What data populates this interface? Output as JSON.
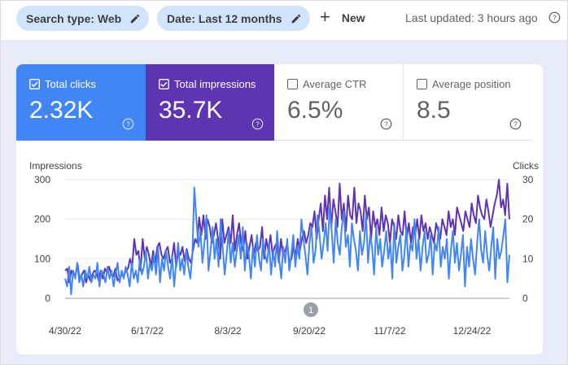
{
  "topbar": {
    "search_type_chip": "Search type: Web",
    "date_chip": "Date: Last 12 months",
    "new_button": "New",
    "last_updated": "Last updated: 3 hours ago"
  },
  "metrics": [
    {
      "label": "Total clicks",
      "value": "2.32K",
      "selected": true,
      "color": "#4285f4"
    },
    {
      "label": "Total impressions",
      "value": "35.7K",
      "selected": true,
      "color": "#5e35b1"
    },
    {
      "label": "Average CTR",
      "value": "6.5%",
      "selected": false
    },
    {
      "label": "Average position",
      "value": "8.5",
      "selected": false
    }
  ],
  "icons": [
    "edit-pencil-icon",
    "plus-icon",
    "help-icon",
    "checkbox-checked-icon",
    "checkbox-empty-icon",
    "annotation-marker-icon"
  ],
  "chart_data": {
    "type": "line",
    "left_axis_label": "Impressions",
    "right_axis_label": "Clicks",
    "y_left_ticks": [
      "300",
      "200",
      "100",
      "0"
    ],
    "y_right_ticks": [
      "30",
      "20",
      "10",
      "0"
    ],
    "ylim_left": [
      0,
      300
    ],
    "ylim_right": [
      0,
      30
    ],
    "x_tick_labels": [
      "4/30/22",
      "6/17/22",
      "8/3/22",
      "9/20/22",
      "11/7/22",
      "12/24/22"
    ],
    "annotation_marker": "1",
    "grid": true,
    "series": [
      {
        "axis": "left",
        "color": "#5e35b1",
        "values": [
          70,
          75,
          40,
          70,
          60,
          60,
          85,
          45,
          60,
          70,
          40,
          60,
          45,
          60,
          70,
          65,
          45,
          70,
          50,
          75,
          65,
          80,
          60,
          55,
          75,
          45,
          50,
          60,
          55,
          70,
          75,
          100,
          80,
          150,
          110,
          120,
          70,
          150,
          100,
          130,
          110,
          80,
          120,
          90,
          130,
          140,
          110,
          100,
          120,
          130,
          90,
          100,
          140,
          80,
          120,
          110,
          130,
          95,
          125,
          100,
          90,
          120,
          150,
          140,
          205,
          160,
          210,
          150,
          200,
          180,
          140,
          160,
          190,
          150,
          100,
          200,
          140,
          160,
          180,
          140,
          210,
          120,
          160,
          190,
          140,
          120,
          170,
          100,
          130,
          160,
          110,
          140,
          120,
          130,
          180,
          100,
          150,
          120,
          160,
          110,
          130,
          140,
          90,
          150,
          110,
          120,
          140,
          90,
          100,
          130,
          110,
          150,
          120,
          150,
          170,
          140,
          160,
          190,
          180,
          220,
          150,
          200,
          240,
          170,
          260,
          200,
          280,
          180,
          250,
          220,
          180,
          290,
          200,
          240,
          170,
          260,
          210,
          200,
          280,
          190,
          240,
          220,
          170,
          260,
          200,
          230,
          150,
          220,
          180,
          200,
          160,
          230,
          170,
          210,
          190,
          140,
          200,
          180,
          150,
          210,
          170,
          160,
          220,
          150,
          190,
          140,
          180,
          160,
          200,
          150,
          210,
          170,
          190,
          150,
          180,
          160,
          140,
          190,
          170,
          150,
          200,
          180,
          160,
          220,
          180,
          200,
          160,
          230,
          210,
          190,
          170,
          220,
          200,
          180,
          240,
          210,
          190,
          260,
          230,
          210,
          200,
          250,
          220,
          180,
          210,
          240,
          260,
          300,
          230,
          250,
          210,
          290,
          200
        ]
      },
      {
        "axis": "right",
        "color": "#4285f4",
        "values": [
          5,
          3,
          8,
          1,
          7,
          5,
          9,
          4,
          6,
          3,
          7,
          5,
          8,
          4,
          6,
          5,
          9,
          3,
          7,
          6,
          4,
          8,
          5,
          7,
          3,
          6,
          9,
          4,
          7,
          5,
          8,
          6,
          3,
          9,
          5,
          7,
          4,
          10,
          6,
          8,
          12,
          5,
          9,
          7,
          11,
          6,
          13,
          4,
          10,
          7,
          12,
          8,
          5,
          11,
          3,
          9,
          14,
          7,
          10,
          6,
          12,
          8,
          5,
          11,
          28,
          20,
          13,
          17,
          9,
          14,
          21,
          7,
          12,
          18,
          10,
          15,
          8,
          20,
          13,
          6,
          11,
          17,
          9,
          14,
          8,
          12,
          16,
          10,
          18,
          7,
          14,
          11,
          5,
          13,
          8,
          16,
          10,
          7,
          15,
          11,
          9,
          14,
          6,
          12,
          8,
          17,
          10,
          5,
          13,
          9,
          15,
          7,
          11,
          16,
          8,
          13,
          10,
          20,
          15,
          11,
          6,
          14,
          18,
          9,
          12,
          21,
          16,
          10,
          14,
          19,
          12,
          23,
          17,
          9,
          20,
          14,
          11,
          18,
          22,
          13,
          16,
          8,
          19,
          15,
          12,
          7,
          17,
          11,
          14,
          21,
          9,
          16,
          13,
          6,
          18,
          11,
          15,
          8,
          12,
          17,
          10,
          14,
          5,
          19,
          9,
          13,
          16,
          7,
          11,
          18,
          8,
          14,
          12,
          20,
          10,
          15,
          7,
          13,
          17,
          9,
          11,
          16,
          6,
          14,
          12,
          18,
          8,
          13,
          10,
          15,
          5,
          12,
          17,
          9,
          14,
          7,
          11,
          16,
          3,
          13,
          8,
          15,
          10,
          6,
          14,
          20,
          12,
          9,
          17,
          11,
          7,
          13,
          18,
          5,
          15,
          10,
          12,
          16,
          20,
          4,
          11
        ]
      }
    ]
  }
}
